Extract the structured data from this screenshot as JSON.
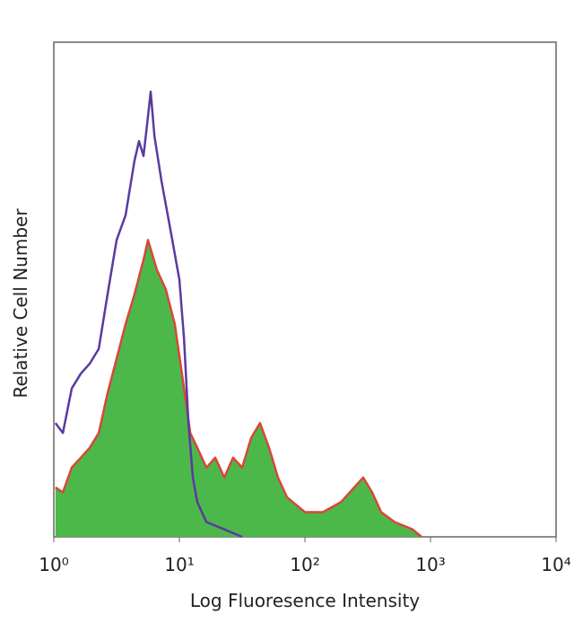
{
  "chart_data": {
    "type": "histogram-line",
    "xlabel": "Log Fluoresence Intensity",
    "ylabel": "Relative Cell Number",
    "xscale": "log",
    "xlim": [
      1,
      10000
    ],
    "xticks": [
      {
        "value": 1,
        "label": "10⁰"
      },
      {
        "value": 10,
        "label": "10¹"
      },
      {
        "value": 100,
        "label": "10²"
      },
      {
        "value": 1000,
        "label": "10³"
      },
      {
        "value": 10000,
        "label": "10⁴"
      }
    ],
    "ylim": [
      0,
      100
    ],
    "series": [
      {
        "color": "#4cb84a",
        "edge": "#d8473a",
        "fill": true,
        "x": [
          1.03,
          1.18,
          1.39,
          1.64,
          1.93,
          2.28,
          2.68,
          3.16,
          3.73,
          4.39,
          5.18,
          5.62,
          6.62,
          7.8,
          9.2,
          10.9,
          12.2,
          13.9,
          16.4,
          19.3,
          22.8,
          26.8,
          31.6,
          37.3,
          43.9,
          51.8,
          61,
          72,
          100,
          139,
          193,
          247,
          291,
          343,
          405,
          518,
          719,
          849
        ],
        "values": [
          10,
          9,
          14,
          16,
          18,
          21,
          29,
          36,
          43,
          49,
          56,
          60,
          54,
          50,
          43,
          30,
          21,
          18,
          14,
          16,
          12,
          16,
          14,
          20,
          23,
          18,
          12,
          8,
          5,
          5,
          7,
          10,
          12,
          9,
          5,
          3,
          1.5,
          0
        ]
      },
      {
        "color": "#5a3aa0",
        "edge": "#5a3aa0",
        "fill": false,
        "x": [
          1.03,
          1.18,
          1.39,
          1.64,
          1.93,
          2.28,
          2.68,
          3.16,
          3.73,
          4.39,
          4.77,
          5.18,
          5.62,
          5.91,
          6.33,
          7.2,
          8.5,
          10,
          10.9,
          11.8,
          12.8,
          13.9,
          16.4,
          22.8,
          31.6
        ],
        "values": [
          23,
          21,
          30,
          33,
          35,
          38,
          49,
          60,
          65,
          76,
          80,
          77,
          85,
          90,
          81,
          72,
          62,
          52,
          40,
          23,
          12,
          7,
          3,
          1.5,
          0
        ]
      }
    ]
  }
}
